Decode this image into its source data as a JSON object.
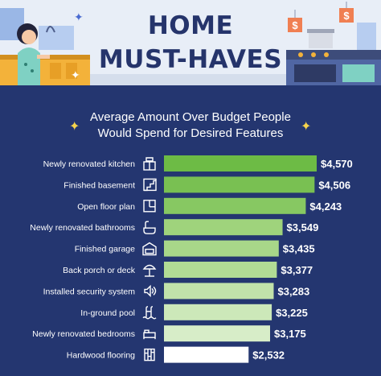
{
  "header": {
    "title_line1": "HOME",
    "title_line2": "MUST-HAVES"
  },
  "chart_data": {
    "type": "bar",
    "orientation": "horizontal",
    "title_line1": "Average Amount Over Budget People",
    "title_line2": "Would Spend for Desired Features",
    "categories": [
      "Newly renovated kitchen",
      "Finished basement",
      "Open floor plan",
      "Newly renovated bathrooms",
      "Finished garage",
      "Back porch or deck",
      "Installed security system",
      "In-ground pool",
      "Newly renovated bedrooms",
      "Hardwood flooring"
    ],
    "values": [
      4570,
      4506,
      4243,
      3549,
      3435,
      3377,
      3283,
      3225,
      3175,
      2532
    ],
    "value_labels": [
      "$4,570",
      "$4,506",
      "$4,243",
      "$3,549",
      "$3,435",
      "$3,377",
      "$3,283",
      "$3,225",
      "$3,175",
      "$2,532"
    ],
    "icons": [
      "kitchen-icon",
      "basement-stairs-icon",
      "floor-plan-icon",
      "bathtub-icon",
      "garage-icon",
      "deck-umbrella-icon",
      "speaker-alarm-icon",
      "pool-ladder-icon",
      "bed-icon",
      "hardwood-floor-icon"
    ],
    "bar_colors": [
      "#6dbb45",
      "#79c052",
      "#87c862",
      "#9fd37c",
      "#a8d789",
      "#b2dc95",
      "#c1e2aa",
      "#cce8b9",
      "#d7edc8",
      "#ffffff"
    ],
    "xlim": [
      0,
      4570
    ],
    "grid": false,
    "legend": "none"
  },
  "colors": {
    "background": "#243670",
    "banner": "#e8eef7",
    "title": "#25346b",
    "accent_star": "#f5d34c"
  }
}
